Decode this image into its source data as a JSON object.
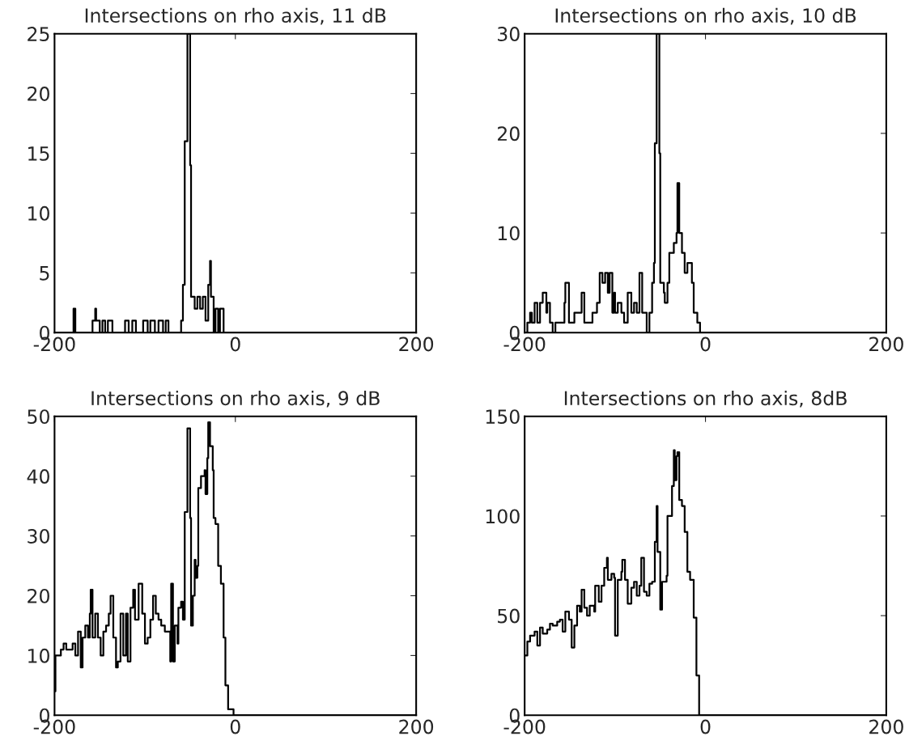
{
  "chart_data": [
    {
      "type": "step",
      "title": "Intersections on rho axis, 11 dB",
      "xlim": [
        -200,
        200
      ],
      "xticks": [
        -200,
        0,
        200
      ],
      "ylim": [
        0,
        25
      ],
      "yticks": [
        0,
        5,
        10,
        15,
        20,
        25
      ],
      "grid": false,
      "legend": false,
      "series": [
        {
          "color": "#000000",
          "x": [
            -200,
            -180,
            -179,
            -177,
            -161,
            -158,
            -155,
            -154,
            -150,
            -147,
            -144,
            -141,
            -136,
            -122,
            -118,
            -114,
            -110,
            -102,
            -97,
            -94,
            -89,
            -85,
            -80,
            -77,
            -74,
            -63,
            -60,
            -58,
            -56,
            -53,
            -50,
            -49,
            -45,
            -42,
            -39,
            -36,
            -33,
            -30,
            -28,
            -27,
            -24,
            -22,
            -19,
            -17,
            -13,
            200
          ],
          "values": [
            0,
            0,
            2,
            0,
            0,
            1,
            2,
            1,
            0,
            1,
            0,
            1,
            0,
            1,
            0,
            1,
            0,
            1,
            0,
            1,
            0,
            1,
            0,
            1,
            0,
            0,
            1,
            4,
            16,
            25,
            14,
            3,
            2,
            3,
            2,
            3,
            1,
            4,
            6,
            3,
            0,
            2,
            0,
            2,
            0,
            0
          ]
        }
      ]
    },
    {
      "type": "step",
      "title": "Intersections on rho axis, 10 dB",
      "xlim": [
        -200,
        200
      ],
      "xticks": [
        -200,
        0,
        200
      ],
      "ylim": [
        0,
        30
      ],
      "yticks": [
        0,
        10,
        20,
        30
      ],
      "grid": false,
      "legend": false,
      "series": [
        {
          "color": "#000000",
          "x": [
            -200,
            -197,
            -194,
            -192,
            -189,
            -186,
            -183,
            -180,
            -176,
            -175,
            -172,
            -169,
            -166,
            -161,
            -156,
            -155,
            -151,
            -148,
            -145,
            -140,
            -137,
            -134,
            -129,
            -125,
            -120,
            -117,
            -114,
            -111,
            -108,
            -106,
            -103,
            -101,
            -100,
            -97,
            -93,
            -90,
            -86,
            -82,
            -79,
            -76,
            -73,
            -70,
            -65,
            -62,
            -59,
            -57,
            -56,
            -54,
            -51,
            -50,
            -46,
            -45,
            -42,
            -40,
            -35,
            -32,
            -31,
            -29,
            -26,
            -23,
            -20,
            -15,
            -13,
            -9,
            -6,
            200
          ],
          "values": [
            0,
            1,
            2,
            1,
            3,
            1,
            3,
            4,
            2,
            3,
            1,
            0,
            1,
            1,
            3,
            5,
            1,
            1,
            2,
            2,
            4,
            1,
            1,
            2,
            3,
            6,
            5,
            6,
            4,
            6,
            2,
            4,
            2,
            3,
            2,
            1,
            4,
            2,
            3,
            2,
            6,
            2,
            0,
            2,
            5,
            7,
            19,
            30,
            18,
            5,
            4,
            3,
            5,
            8,
            9,
            10,
            15,
            10,
            8,
            6,
            7,
            5,
            2,
            1,
            0,
            0
          ]
        }
      ]
    },
    {
      "type": "step",
      "title": "Intersections on rho axis, 9 dB",
      "xlim": [
        -200,
        200
      ],
      "xticks": [
        -200,
        0,
        200
      ],
      "ylim": [
        0,
        50
      ],
      "yticks": [
        0,
        10,
        20,
        30,
        40,
        50
      ],
      "grid": false,
      "legend": false,
      "series": [
        {
          "color": "#000000",
          "x": [
            -200,
            -199,
            -196,
            -193,
            -190,
            -187,
            -183,
            -180,
            -177,
            -174,
            -171,
            -169,
            -166,
            -163,
            -161,
            -160,
            -158,
            -155,
            -152,
            -149,
            -146,
            -143,
            -140,
            -138,
            -135,
            -132,
            -130,
            -127,
            -124,
            -121,
            -119,
            -116,
            -113,
            -111,
            -108,
            -107,
            -103,
            -100,
            -97,
            -94,
            -91,
            -88,
            -85,
            -82,
            -78,
            -75,
            -72,
            -71,
            -69,
            -67,
            -64,
            -63,
            -60,
            -58,
            -56,
            -53,
            -50,
            -49,
            -47,
            -45,
            -44,
            -42,
            -41,
            -38,
            -34,
            -33,
            -31,
            -30,
            -28,
            -25,
            -24,
            -22,
            -19,
            -16,
            -13,
            -11,
            -8,
            -2,
            200
          ],
          "values": [
            4,
            10,
            10,
            11,
            12,
            11,
            11,
            12,
            10,
            14,
            8,
            13,
            15,
            13,
            17,
            21,
            13,
            17,
            13,
            10,
            14,
            15,
            17,
            20,
            13,
            8,
            9,
            17,
            10,
            17,
            9,
            18,
            21,
            16,
            16,
            22,
            17,
            12,
            13,
            16,
            20,
            17,
            16,
            15,
            14,
            14,
            9,
            22,
            9,
            15,
            12,
            18,
            19,
            16,
            34,
            48,
            33,
            15,
            20,
            26,
            23,
            25,
            38,
            40,
            41,
            37,
            43,
            49,
            45,
            41,
            33,
            32,
            25,
            22,
            13,
            5,
            1,
            0,
            0
          ]
        }
      ]
    },
    {
      "type": "step",
      "title": "Intersections on rho axis, 8dB",
      "xlim": [
        -200,
        200
      ],
      "xticks": [
        -200,
        0,
        200
      ],
      "ylim": [
        0,
        150
      ],
      "yticks": [
        0,
        50,
        100,
        150
      ],
      "grid": false,
      "legend": false,
      "series": [
        {
          "color": "#000000",
          "x": [
            -200,
            -197,
            -194,
            -189,
            -186,
            -183,
            -180,
            -175,
            -172,
            -169,
            -164,
            -161,
            -158,
            -155,
            -151,
            -148,
            -145,
            -142,
            -139,
            -137,
            -134,
            -131,
            -128,
            -123,
            -122,
            -118,
            -115,
            -112,
            -109,
            -108,
            -104,
            -101,
            -100,
            -97,
            -93,
            -92,
            -89,
            -86,
            -82,
            -79,
            -76,
            -73,
            -71,
            -68,
            -65,
            -62,
            -59,
            -56,
            -54,
            -53,
            -50,
            -48,
            -43,
            -42,
            -39,
            -37,
            -35,
            -34,
            -32,
            -31,
            -29,
            -26,
            -23,
            -20,
            -17,
            -13,
            -10,
            -7,
            200
          ],
          "values": [
            30,
            37,
            40,
            42,
            35,
            44,
            41,
            43,
            46,
            45,
            47,
            48,
            42,
            52,
            48,
            34,
            45,
            55,
            52,
            63,
            54,
            50,
            55,
            52,
            65,
            57,
            65,
            74,
            79,
            68,
            71,
            69,
            40,
            68,
            72,
            78,
            68,
            56,
            64,
            67,
            60,
            65,
            79,
            62,
            60,
            66,
            67,
            87,
            105,
            82,
            53,
            67,
            70,
            100,
            100,
            115,
            133,
            118,
            130,
            132,
            108,
            105,
            92,
            72,
            68,
            49,
            20,
            0,
            0
          ]
        }
      ]
    }
  ]
}
